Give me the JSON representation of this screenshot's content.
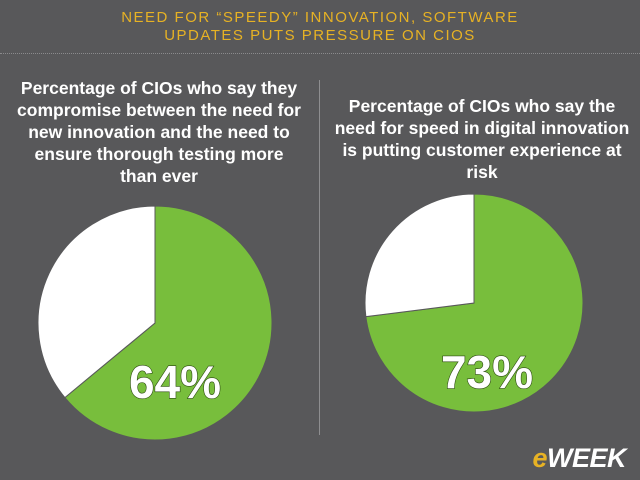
{
  "header": {
    "line1": "NEED FOR “SPEEDY” INNOVATION, SOFTWARE",
    "line2": "UPDATES PUTS PRESSURE ON CIOS"
  },
  "colors": {
    "background": "#58585a",
    "accent": "#e7b224",
    "slice_main": "#78be3c",
    "slice_rest": "#ffffff"
  },
  "chart_data": [
    {
      "type": "pie",
      "title": "Percentage of CIOs who say they compromise between the need for new innovation and the need to ensure thorough testing more than ever",
      "values": [
        64,
        36
      ],
      "label": "64%"
    },
    {
      "type": "pie",
      "title": "Percentage of CIOs who say the need for speed in digital innovation is putting customer experience at risk",
      "values": [
        73,
        27
      ],
      "label": "73%"
    }
  ],
  "logo": {
    "prefix": "e",
    "text": "WEEK"
  }
}
